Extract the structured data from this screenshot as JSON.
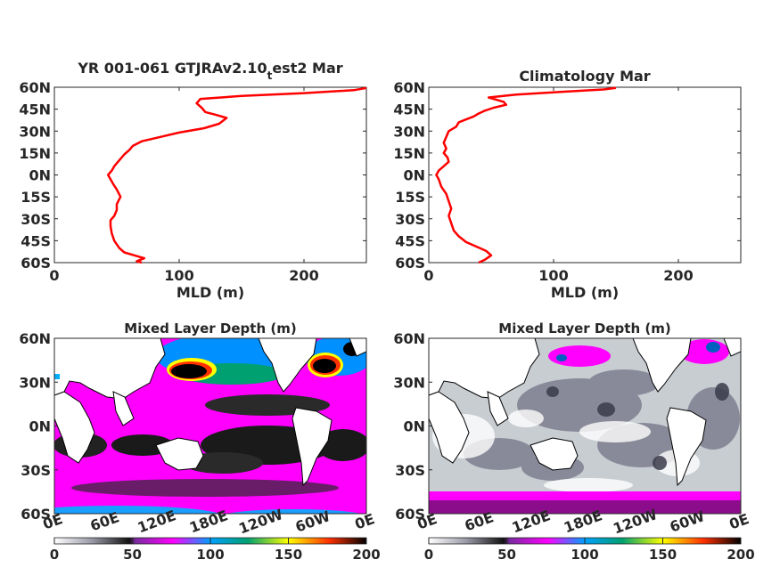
{
  "chart_data": [
    {
      "type": "line",
      "title_main": "YR 001-061 GTJRAv2.10",
      "title_sub": "t",
      "title_tail": "est2 Mar",
      "xlabel": "MLD (m)",
      "ylabel": "",
      "xlim": [
        0,
        250
      ],
      "ylim": [
        -60,
        60
      ],
      "xticks": [
        "0",
        "100",
        "200"
      ],
      "xtick_values": [
        0,
        100,
        200
      ],
      "yticks": [
        "60N",
        "45N",
        "30N",
        "15N",
        "0N",
        "15S",
        "30S",
        "45S",
        "60S"
      ],
      "ytick_values": [
        60,
        45,
        30,
        15,
        0,
        -15,
        -30,
        -45,
        -60
      ],
      "line_color": "#ff0000",
      "series": [
        {
          "points": [
            [
              70,
              -60
            ],
            [
              66,
              -59
            ],
            [
              72,
              -57
            ],
            [
              64,
              -55
            ],
            [
              56,
              -53
            ],
            [
              52,
              -50
            ],
            [
              48,
              -45
            ],
            [
              46,
              -40
            ],
            [
              45,
              -35
            ],
            [
              45,
              -31
            ],
            [
              48,
              -28
            ],
            [
              50,
              -24
            ],
            [
              50,
              -20
            ],
            [
              53,
              -15
            ],
            [
              50,
              -10
            ],
            [
              47,
              -6
            ],
            [
              45,
              -3
            ],
            [
              43,
              0
            ],
            [
              46,
              3
            ],
            [
              48,
              6
            ],
            [
              52,
              10
            ],
            [
              56,
              14
            ],
            [
              60,
              17
            ],
            [
              63,
              20
            ],
            [
              70,
              23
            ],
            [
              85,
              26
            ],
            [
              100,
              29
            ],
            [
              120,
              32
            ],
            [
              132,
              35
            ],
            [
              138,
              39
            ],
            [
              130,
              41
            ],
            [
              121,
              43
            ],
            [
              118,
              46
            ],
            [
              114,
              49
            ],
            [
              117,
              52
            ],
            [
              150,
              54
            ],
            [
              200,
              56
            ],
            [
              240,
              58
            ],
            [
              250,
              59.5
            ]
          ]
        }
      ]
    },
    {
      "type": "line",
      "title_main": "Climatology Mar",
      "title_sub": "",
      "title_tail": "",
      "xlabel": "MLD (m)",
      "ylabel": "",
      "xlim": [
        0,
        250
      ],
      "ylim": [
        -60,
        60
      ],
      "xticks": [
        "0",
        "100",
        "200"
      ],
      "xtick_values": [
        0,
        100,
        200
      ],
      "yticks": [
        "60N",
        "45N",
        "30N",
        "15N",
        "0N",
        "15S",
        "30S",
        "45S",
        "60S"
      ],
      "ytick_values": [
        60,
        45,
        30,
        15,
        0,
        -15,
        -30,
        -45,
        -60
      ],
      "line_color": "#ff0000",
      "series": [
        {
          "points": [
            [
              40,
              -60
            ],
            [
              45,
              -58
            ],
            [
              50,
              -55
            ],
            [
              46,
              -52
            ],
            [
              38,
              -49
            ],
            [
              30,
              -46
            ],
            [
              24,
              -42
            ],
            [
              20,
              -38
            ],
            [
              18,
              -33
            ],
            [
              16,
              -28
            ],
            [
              18,
              -23
            ],
            [
              16,
              -18
            ],
            [
              14,
              -13
            ],
            [
              10,
              -8
            ],
            [
              8,
              -3
            ],
            [
              6,
              0
            ],
            [
              8,
              3
            ],
            [
              12,
              6
            ],
            [
              16,
              9
            ],
            [
              15,
              12
            ],
            [
              12,
              15
            ],
            [
              14,
              18
            ],
            [
              12,
              22
            ],
            [
              14,
              26
            ],
            [
              16,
              30
            ],
            [
              22,
              33
            ],
            [
              24,
              36
            ],
            [
              30,
              38
            ],
            [
              36,
              40
            ],
            [
              40,
              42
            ],
            [
              45,
              44
            ],
            [
              52,
              46
            ],
            [
              62,
              48
            ],
            [
              60,
              50
            ],
            [
              48,
              53
            ],
            [
              70,
              55
            ],
            [
              110,
              57
            ],
            [
              140,
              58.5
            ],
            [
              150,
              59.5
            ]
          ]
        }
      ]
    },
    {
      "type": "heatmap",
      "title": "Mixed Layer Depth (m)",
      "xticks": [
        "0E",
        "60E",
        "120E",
        "180E",
        "120W",
        "60W",
        "0E"
      ],
      "yticks": [
        "60N",
        "30N",
        "0N",
        "30S",
        "60S"
      ],
      "ytick_values": [
        60,
        30,
        0,
        -30,
        -60
      ],
      "xlim": [
        0,
        360
      ],
      "ylim": [
        -60,
        60
      ],
      "colorbar_ticks": [
        "0",
        "50",
        "100",
        "150",
        "200"
      ],
      "colorbar_values": [
        0,
        50,
        100,
        150,
        200
      ],
      "colormap": [
        "#ffffff",
        "#8a8a9a",
        "#111111",
        "#5a2a8a",
        "#ff00ff",
        "#00b0ff",
        "#008060",
        "#ffff00",
        "#ff4000",
        "#000000"
      ]
    },
    {
      "type": "heatmap",
      "title": "Mixed Layer Depth (m)",
      "xticks": [
        "0E",
        "60E",
        "120E",
        "180E",
        "120W",
        "60W",
        "0E"
      ],
      "yticks": [
        "60N",
        "30N",
        "0N",
        "30S",
        "60S"
      ],
      "ytick_values": [
        60,
        30,
        0,
        -30,
        -60
      ],
      "xlim": [
        0,
        360
      ],
      "ylim": [
        -60,
        60
      ],
      "colorbar_ticks": [
        "0",
        "50",
        "100",
        "150",
        "200"
      ],
      "colorbar_values": [
        0,
        50,
        100,
        150,
        200
      ],
      "colormap": [
        "#ffffff",
        "#8a8a9a",
        "#111111",
        "#5a2a8a",
        "#ff00ff",
        "#00b0ff",
        "#008060",
        "#ffff00",
        "#ff4000",
        "#000000"
      ]
    }
  ]
}
